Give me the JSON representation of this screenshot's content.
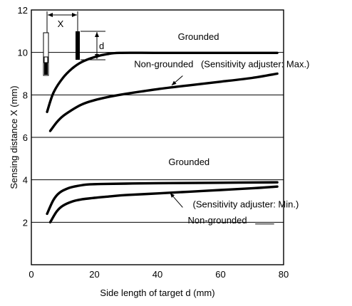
{
  "chart_data": {
    "type": "line",
    "title": "",
    "xlabel": "Side length of target d (mm)",
    "ylabel": "Sensing distance X (mm)",
    "xlim": [
      0,
      80
    ],
    "ylim": [
      0,
      12
    ],
    "xticks": [
      0,
      20,
      40,
      60,
      80
    ],
    "yticks": [
      2,
      4,
      6,
      8,
      10,
      12
    ],
    "grid": true,
    "legend": "none",
    "series": [
      {
        "name": "Grounded",
        "group": "Sensitivity adjuster: Max.",
        "x": [
          5,
          7,
          10,
          13,
          16,
          20,
          24,
          28,
          40,
          60,
          78
        ],
        "y": [
          7.2,
          8.1,
          8.8,
          9.25,
          9.55,
          9.78,
          9.92,
          9.98,
          9.98,
          9.98,
          9.98
        ]
      },
      {
        "name": "Non-grounded",
        "group": "Sensitivity adjuster: Max.",
        "x": [
          6,
          8,
          10,
          13,
          16,
          20,
          25,
          30,
          40,
          50,
          60,
          70,
          78
        ],
        "y": [
          6.3,
          6.7,
          7.0,
          7.3,
          7.55,
          7.75,
          7.92,
          8.05,
          8.27,
          8.45,
          8.62,
          8.8,
          9.0
        ]
      },
      {
        "name": "Grounded",
        "group": "Sensitivity adjuster: Min.",
        "x": [
          5,
          7,
          9,
          12,
          15,
          18,
          22,
          30,
          40,
          60,
          78
        ],
        "y": [
          2.4,
          3.05,
          3.4,
          3.62,
          3.72,
          3.78,
          3.8,
          3.82,
          3.84,
          3.86,
          3.88
        ]
      },
      {
        "name": "Non-grounded",
        "group": "Sensitivity adjuster: Min.",
        "x": [
          6,
          8,
          10,
          13,
          16,
          20,
          25,
          30,
          40,
          50,
          60,
          70,
          78
        ],
        "y": [
          2.0,
          2.5,
          2.78,
          2.98,
          3.08,
          3.15,
          3.22,
          3.28,
          3.36,
          3.44,
          3.52,
          3.6,
          3.68
        ]
      }
    ],
    "annotations": [
      {
        "text": "Grounded",
        "x": 53,
        "y": 10.6
      },
      {
        "text": "Non-grounded",
        "x": 42,
        "y": 9.3
      },
      {
        "text": "(Sensitivity adjuster: Max.)",
        "x": 71,
        "y": 9.3
      },
      {
        "text": "Grounded",
        "x": 50,
        "y": 4.7
      },
      {
        "text": "Non-grounded",
        "x": 59,
        "y": 1.95
      },
      {
        "text": "(Sensitivity adjuster: Min.)",
        "x": 68,
        "y": 2.7
      }
    ],
    "inset_labels": {
      "distance": "X",
      "side": "d"
    }
  }
}
